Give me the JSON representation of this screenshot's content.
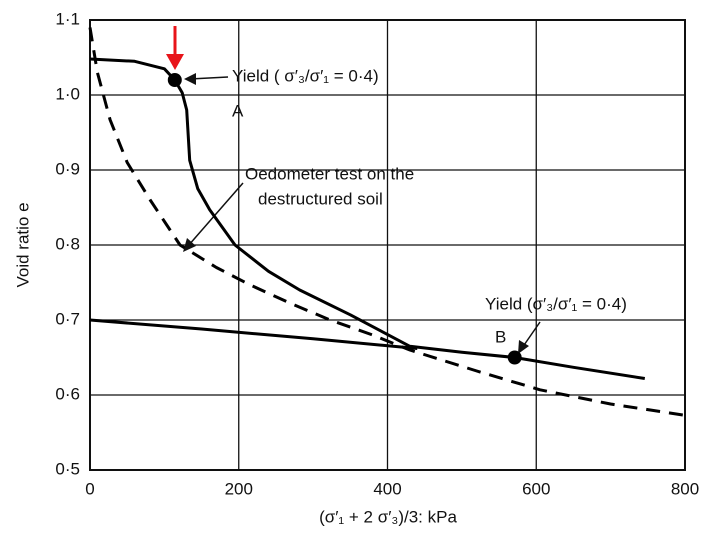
{
  "chart_data": {
    "type": "line",
    "x_label": "(σ′₁ + 2 σ′₃)/3: kPa",
    "y_label": "Void ratio e",
    "xlim": [
      0,
      800
    ],
    "xticks": [
      0,
      200,
      400,
      600,
      800
    ],
    "ylim": [
      0.5,
      1.1
    ],
    "yticks": [
      {
        "value": 0.5,
        "label": "0·5"
      },
      {
        "value": 0.6,
        "label": "0·6"
      },
      {
        "value": 0.7,
        "label": "0·7"
      },
      {
        "value": 0.8,
        "label": "0·8"
      },
      {
        "value": 0.9,
        "label": "0·9"
      },
      {
        "value": 1.0,
        "label": "1·0"
      },
      {
        "value": 1.1,
        "label": "1·1"
      }
    ],
    "grid": true,
    "series": [
      {
        "color": "#000000",
        "dashed": false,
        "x": [
          0,
          60,
          100,
          114,
          124,
          130,
          134,
          145,
          161,
          195,
          240,
          282,
          350,
          430,
          500,
          571,
          650,
          746
        ],
        "values": [
          1.048,
          1.045,
          1.035,
          1.02,
          1.003,
          0.98,
          0.913,
          0.875,
          0.847,
          0.8,
          0.765,
          0.74,
          0.707,
          0.665,
          0.657,
          0.65,
          0.637,
          0.622
        ]
      },
      {
        "color": "#000000",
        "dashed": false,
        "x": [
          0,
          150,
          300,
          440
        ],
        "values": [
          0.7,
          0.688,
          0.675,
          0.662
        ]
      },
      {
        "color": "#000000",
        "dashed": true,
        "x": [
          0,
          10,
          27,
          50,
          81,
          121,
          170,
          215,
          270,
          323,
          380,
          430,
          520,
          605,
          700,
          800
        ],
        "values": [
          1.09,
          1.03,
          0.967,
          0.91,
          0.86,
          0.8,
          0.77,
          0.747,
          0.722,
          0.7,
          0.68,
          0.66,
          0.632,
          0.607,
          0.588,
          0.573
        ]
      }
    ],
    "markers": {
      "x": [
        114,
        571
      ],
      "values": [
        1.02,
        0.65
      ],
      "color": "#000000"
    },
    "annotations": [
      "Yield ( σ′₃/σ′₁ = 0·4)",
      "A",
      "Oedometer test on the",
      "destructured soil",
      "Yield (σ′₃/σ′₁ = 0·4)",
      "B"
    ]
  }
}
